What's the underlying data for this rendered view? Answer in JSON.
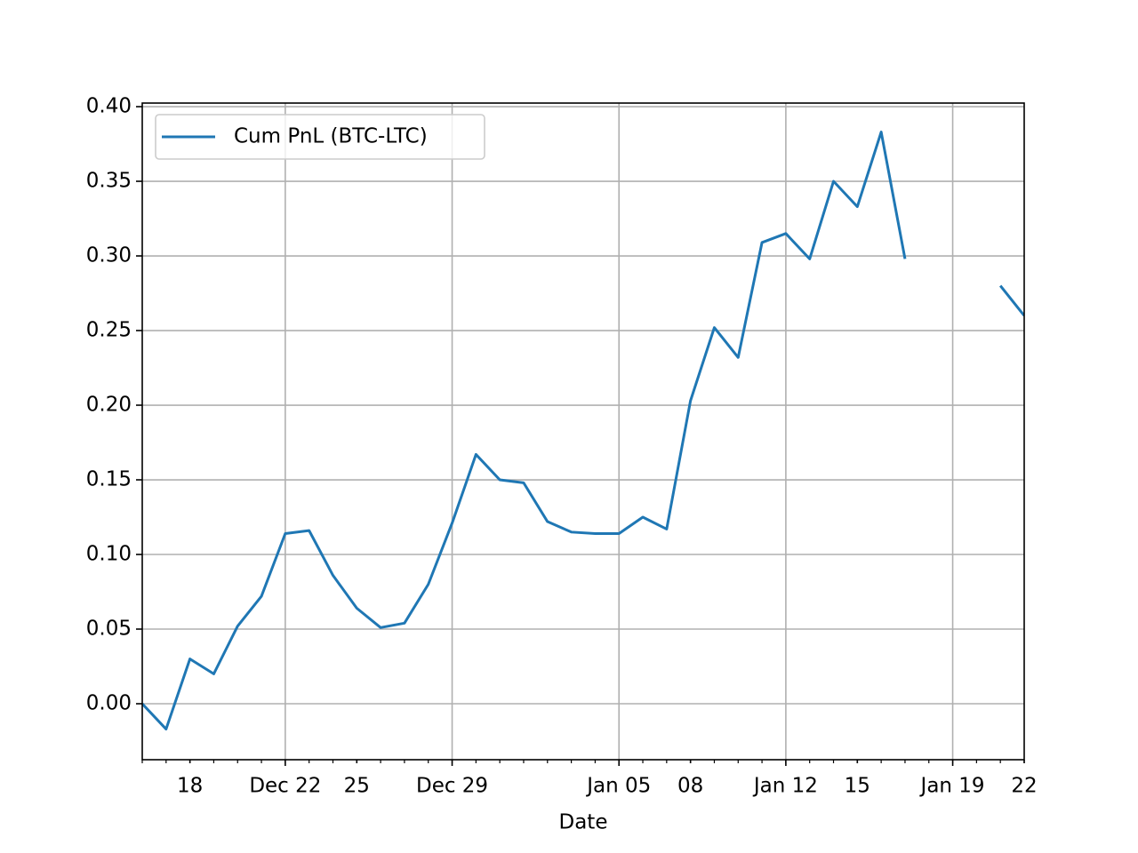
{
  "chart_data": {
    "type": "line",
    "x_label": "Date",
    "x": [
      "Dec 16",
      "Dec 17",
      "Dec 18",
      "Dec 19",
      "Dec 20",
      "Dec 21",
      "Dec 22",
      "Dec 23",
      "Dec 24",
      "Dec 25",
      "Dec 26",
      "Dec 27",
      "Dec 28",
      "Dec 29",
      "Dec 30",
      "Dec 31",
      "Jan 01",
      "Jan 02",
      "Jan 03",
      "Jan 04",
      "Jan 05",
      "Jan 06",
      "Jan 07",
      "Jan 08",
      "Jan 09",
      "Jan 10",
      "Jan 11",
      "Jan 12",
      "Jan 13",
      "Jan 14",
      "Jan 15",
      "Jan 16",
      "Jan 17",
      "Jan 18",
      "Jan 19",
      "Jan 20",
      "Jan 21",
      "Jan 22"
    ],
    "series": [
      {
        "name": "Cum PnL (BTC-LTC)",
        "color": "#1f77b4",
        "values": [
          0.0,
          -0.017,
          0.03,
          0.02,
          0.052,
          0.072,
          0.114,
          0.116,
          0.086,
          0.064,
          0.051,
          0.054,
          0.08,
          0.121,
          0.167,
          0.15,
          0.148,
          0.122,
          0.115,
          0.114,
          0.114,
          0.125,
          0.117,
          0.203,
          0.252,
          0.232,
          0.309,
          0.315,
          0.298,
          0.35,
          0.333,
          0.383,
          0.298,
          null,
          null,
          null,
          0.28,
          0.26
        ]
      }
    ],
    "xlim": [
      "Dec 16",
      "Jan 22"
    ],
    "xticks": [
      "Dec 22",
      "Dec 29",
      "Jan 05",
      "Jan 12",
      "Jan 19",
      {
        "value": "Dec 18",
        "label": "18"
      },
      {
        "value": "Dec 25",
        "label": "25"
      },
      {
        "value": "Jan 08",
        "label": "08"
      },
      {
        "value": "Jan 15",
        "label": "15"
      },
      {
        "value": "Jan 22",
        "label": "22"
      }
    ],
    "ylim": [
      -0.0375,
      0.4024
    ],
    "yticks": [
      {
        "value": 0,
        "label": "0.00"
      },
      {
        "value": 0.05,
        "label": "0.05"
      },
      {
        "value": 0.1,
        "label": "0.10"
      },
      {
        "value": 0.15,
        "label": "0.15"
      },
      {
        "value": 0.2,
        "label": "0.20"
      },
      {
        "value": 0.25,
        "label": "0.25"
      },
      {
        "value": 0.3,
        "label": "0.30"
      },
      {
        "value": 0.35,
        "label": "0.35"
      },
      {
        "value": 0.4,
        "label": "0.40"
      }
    ],
    "grid": true,
    "legend": "upper left"
  }
}
